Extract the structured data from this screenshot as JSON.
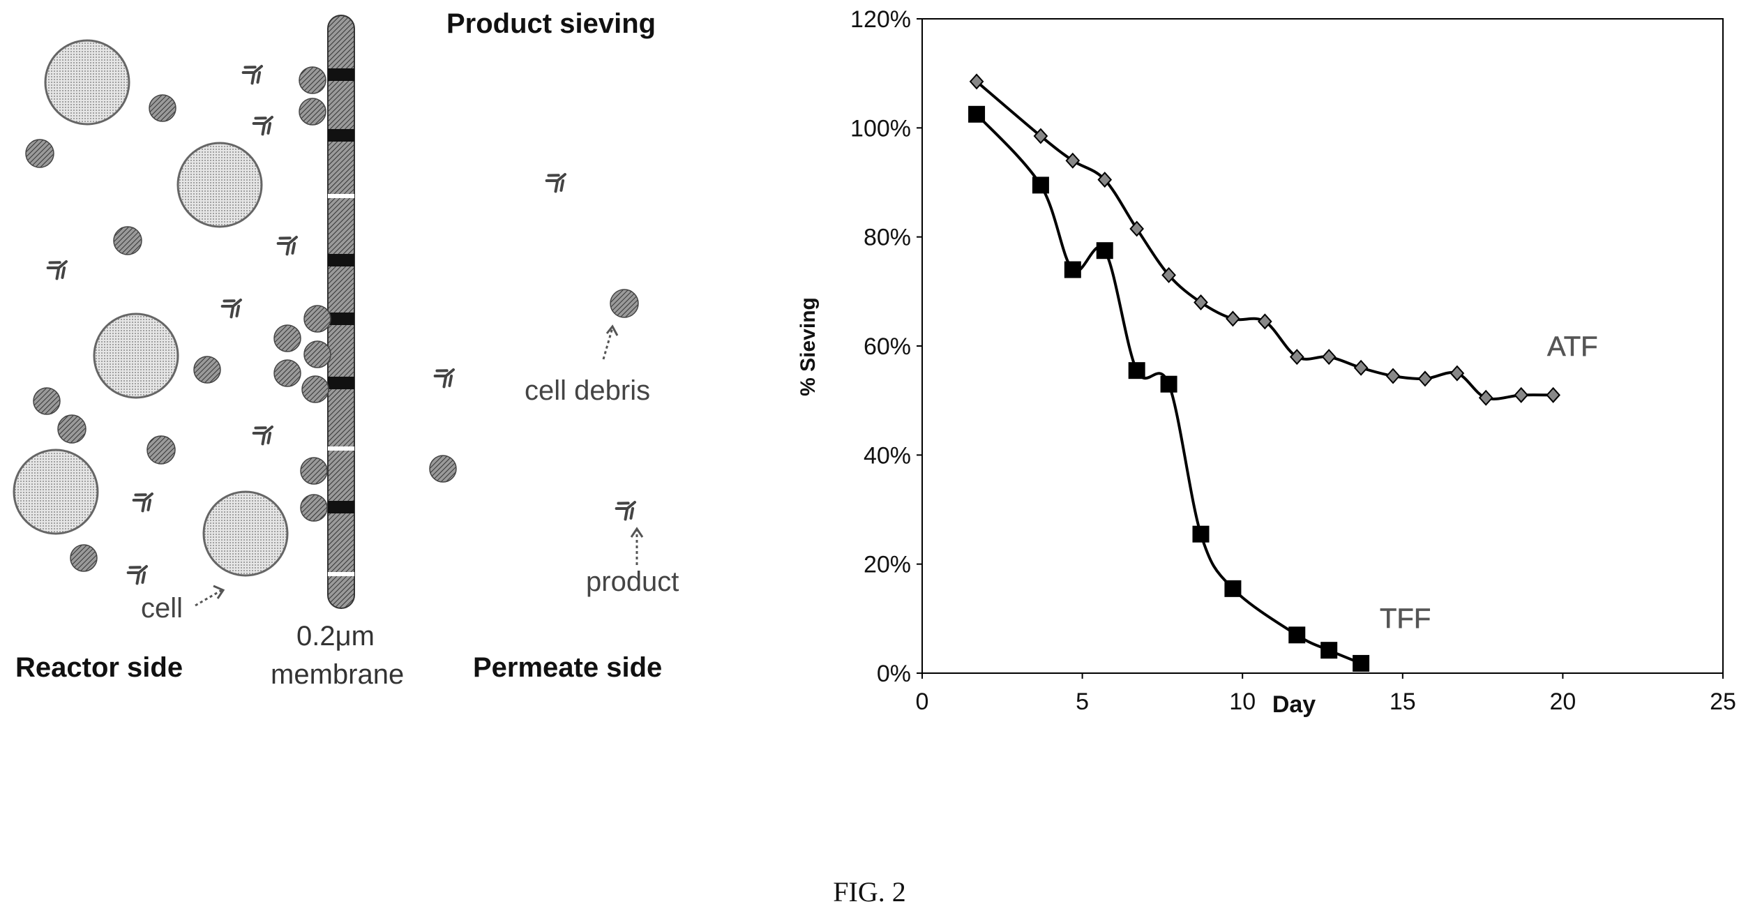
{
  "caption": "FIG. 2",
  "diagram": {
    "title": "Product sieving",
    "reactor_label": "Reactor side",
    "membrane_size": "0.2μm",
    "membrane_label": "membrane",
    "permeate_label": "Permeate side",
    "cell_label": "cell",
    "debris_label": "cell debris",
    "product_label": "product"
  },
  "colors": {
    "axis": "#000000",
    "series_line": "#000000",
    "membrane_dark": "#1a1a1a",
    "cell_fill": "#cfcfcf",
    "debris_fill": "#777777"
  },
  "chart_data": {
    "type": "line",
    "title": "",
    "xlabel": "Day",
    "ylabel": "% Sieving",
    "xlim": [
      0,
      25
    ],
    "ylim": [
      0,
      1.2
    ],
    "xticks": [
      "0",
      "5",
      "10",
      "15",
      "20",
      "25"
    ],
    "yticks": [
      "0%",
      "20%",
      "40%",
      "60%",
      "80%",
      "100%",
      "120%"
    ],
    "grid": false,
    "series": [
      {
        "name": "ATF",
        "marker": "diamond",
        "x": [
          1.7,
          3.7,
          4.7,
          5.7,
          6.7,
          7.7,
          8.7,
          9.7,
          10.7,
          11.7,
          12.7,
          13.7,
          14.7,
          15.7,
          16.7,
          17.6,
          18.7,
          19.7
        ],
        "y": [
          1.085,
          0.985,
          0.94,
          0.905,
          0.815,
          0.73,
          0.68,
          0.65,
          0.645,
          0.58,
          0.58,
          0.56,
          0.545,
          0.54,
          0.55,
          0.505,
          0.51,
          0.51
        ]
      },
      {
        "name": "TFF",
        "marker": "square",
        "x": [
          1.7,
          3.7,
          4.7,
          5.7,
          6.7,
          7.7,
          8.7,
          9.7,
          11.7,
          12.7,
          13.7
        ],
        "y": [
          1.025,
          0.895,
          0.74,
          0.775,
          0.555,
          0.53,
          0.255,
          0.155,
          0.07,
          0.042,
          0.018
        ]
      }
    ]
  }
}
